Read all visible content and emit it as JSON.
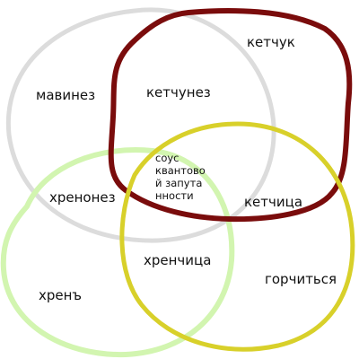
{
  "colors": {
    "background": "#ffffff",
    "mayonnaise_circle": "#dcdcdc",
    "ketchup_circle": "#7a0c0c",
    "mustard_circle": "#d8d02a",
    "horseradish_circle": "#d2f5b0",
    "text": "#111111"
  },
  "labels": {
    "ketchup": "кетчук",
    "mayonnaise": "мавинез",
    "ketchunez": "кетчунез",
    "khrenonez": "хренонез",
    "ketchitsa": "кетчица",
    "khrenchitsa": "хренчица",
    "gorchitsya": "горчиться",
    "khren": "хренъ",
    "center": [
      "соус",
      "квантово",
      "й запута",
      "нности"
    ]
  }
}
